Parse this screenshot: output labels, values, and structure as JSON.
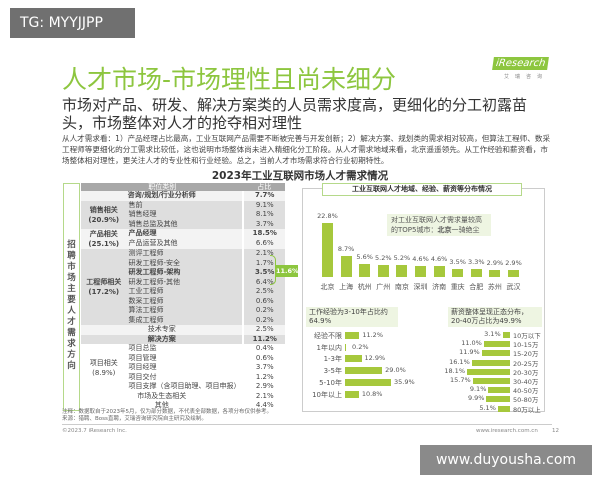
{
  "watermarks": {
    "top_left": "TG: MYYJJPP",
    "bottom_right": "www.duyousha.com"
  },
  "logo": {
    "brand": "iResearch",
    "sub": "艾瑞咨询"
  },
  "title": "人才市场-市场理性且尚未细分",
  "subtitle": "市场对产品、研发、解决方案类的人员需求度高，更细化的分工初露苗头，市场整体对人才的抢夺相对理性",
  "body": "从人才需求看：1）产品经理占比最高，工业互联网产品需要不断被完善与开发创新；2）解决方案、规划类的需求相对较高，但算法工程师、数采工程师等更细化的分工需求比较低，这也说明市场整体尚未进入精细化分工阶段。从人才需求地域来看，北京遥遥领先。从工作经验和薪资看，市场整体相对理性，更关注人才的专业性和行业经验。总之，当前人才市场需求符合行业初期特性。",
  "chart_title": "2023年工业互联网市场人才需求情况",
  "table": {
    "side_label": "招聘市场主要人才需求方向",
    "headers": [
      "职位类别",
      "占比"
    ],
    "groups": {
      "sales": "销售相关\n(20.9%)",
      "product": "产品相关\n(25.1%)",
      "eng": "工程师相关\n(17.2%)",
      "project": "项目相关\n(8.9%)"
    },
    "rows": [
      {
        "item": "咨询/规划/行业分析师",
        "value": "7.7%",
        "bold": true,
        "shade": "l",
        "group": null
      },
      {
        "item": "售前",
        "value": "9.1%",
        "shade": "g",
        "group": "sales",
        "span": 3
      },
      {
        "item": "销售经理",
        "value": "8.1%",
        "shade": "g"
      },
      {
        "item": "销售总监及其他",
        "value": "3.7%",
        "shade": "g"
      },
      {
        "item": "产品经理",
        "value": "18.5%",
        "bold": true,
        "shade": "l",
        "group": "product",
        "span": 2
      },
      {
        "item": "产品运营及其他",
        "value": "6.6%",
        "shade": "l"
      },
      {
        "item": "测评工程师",
        "value": "2.1%",
        "shade": "g",
        "group": "eng",
        "span": 8
      },
      {
        "item": "研发工程师-安全",
        "value": "1.7%",
        "shade": "g"
      },
      {
        "item": "研发工程师-架构",
        "value": "3.5%",
        "bold": true,
        "shade": "g"
      },
      {
        "item": "研发工程师-其他",
        "value": "6.4%",
        "shade": "g"
      },
      {
        "item": "工业工程师",
        "value": "2.5%",
        "shade": "g"
      },
      {
        "item": "数采工程师",
        "value": "0.6%",
        "shade": "g"
      },
      {
        "item": "算法工程师",
        "value": "0.2%",
        "shade": "g"
      },
      {
        "item": "集成工程师",
        "value": "0.2%",
        "shade": "g"
      },
      {
        "item": "技术专家",
        "value": "2.5%",
        "shade": "l",
        "group": null
      },
      {
        "item": "解决方案",
        "value": "11.2%",
        "bold": true,
        "shade": "g",
        "group": null
      },
      {
        "item": "项目总监",
        "value": "0.4%",
        "shade": "w",
        "group": "project",
        "span": 5
      },
      {
        "item": "项目管理",
        "value": "0.6%",
        "shade": "w"
      },
      {
        "item": "项目经理",
        "value": "3.7%",
        "shade": "w"
      },
      {
        "item": "项目交付",
        "value": "1.2%",
        "shade": "w"
      },
      {
        "item": "项目支撑（含项目助理、项目申报）",
        "value": "2.9%",
        "shade": "w"
      },
      {
        "item": "市场及生态相关",
        "value": "2.1%",
        "shade": "w",
        "group": null
      },
      {
        "item": "其他",
        "value": "4.4%",
        "shade": "w",
        "group": null
      }
    ],
    "rd_total_badge": "11.6%"
  },
  "panel_title": "工业互联网人才地域、经验、薪资等分布情况",
  "chart_data": [
    {
      "type": "bar",
      "categories": [
        "北京",
        "上海",
        "杭州",
        "广州",
        "南京",
        "深圳",
        "济南",
        "重庆",
        "合肥",
        "苏州",
        "武汉"
      ],
      "values": [
        22.8,
        8.7,
        5.6,
        5.2,
        5.2,
        4.6,
        4.6,
        3.5,
        3.3,
        2.9,
        2.9
      ],
      "unit": "%",
      "annotation": "对工业互联网人才需求量较高的TOP5城市：北京一骑绝尘",
      "annotation_bold": "北京"
    },
    {
      "type": "bar",
      "orientation": "horizontal",
      "categories": [
        "经验不限",
        "1年以内",
        "1-3年",
        "3-5年",
        "5-10年",
        "10年以上"
      ],
      "values": [
        11.2,
        0.2,
        12.9,
        29.0,
        35.9,
        10.8
      ],
      "unit": "%",
      "annotation": "工作经验为3-10年占比约64.9%"
    },
    {
      "type": "bar",
      "orientation": "horizontal",
      "categories": [
        "10万以下",
        "10-15万",
        "15-20万",
        "20-25万",
        "20-30万",
        "30-40万",
        "40-50万",
        "50-80万",
        "80万以上"
      ],
      "values": [
        3.1,
        11.0,
        11.9,
        16.1,
        18.1,
        15.7,
        9.1,
        9.9,
        5.1
      ],
      "unit": "%",
      "annotation": "薪资整体呈现正态分布，20-40万占比为49.9%"
    }
  ],
  "bar_color": "#a6c83c",
  "accent_color": "#8dc63f",
  "footer": {
    "note": "注释：数据取自于2023年5月，仅为部分数据，不代表全部数据，各项分布仅供参考。",
    "source": "来源：猎聘、Boss直聘，艾瑞咨询研究院自主研究及绘制。",
    "copyright": "©2023.7 iResearch Inc.",
    "website": "www.iresearch.com.cn",
    "page": "12"
  }
}
